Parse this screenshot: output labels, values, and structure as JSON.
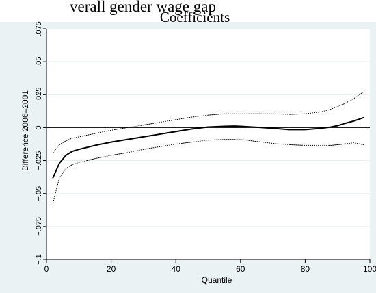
{
  "page": {
    "heading": "verall gender wage gap",
    "subheading": "Coefficients"
  },
  "chart_data": {
    "type": "line",
    "title": "verall gender wage gap",
    "subtitle": "Coefficients",
    "xlabel": "Quantile",
    "ylabel": "Difference 2006–2001",
    "xlim": [
      0,
      100
    ],
    "ylim": [
      -0.1,
      0.075
    ],
    "x_ticks": [
      0,
      20,
      40,
      60,
      80,
      100
    ],
    "x_tick_labels": [
      "0",
      "20",
      "40",
      "60",
      "80",
      "100"
    ],
    "y_ticks": [
      -0.1,
      -0.075,
      -0.05,
      -0.025,
      0,
      0.025,
      0.05,
      0.075
    ],
    "y_tick_labels": [
      "−.1",
      "−.075",
      "−.05",
      "−.025",
      "0",
      ".025",
      ".05",
      ".075"
    ],
    "grid": true,
    "legend": "none",
    "colors": {
      "outer_background": "#eaf2f3",
      "plot_background": "#ffffff",
      "grid": "#e6eef0",
      "line": "#000000"
    },
    "reference_line": {
      "y": 0
    },
    "series": [
      {
        "style": "solid",
        "x": [
          2,
          4,
          6,
          8,
          10,
          15,
          20,
          25,
          30,
          35,
          40,
          45,
          50,
          55,
          58,
          60,
          65,
          70,
          75,
          80,
          85,
          88,
          90,
          92,
          95,
          98
        ],
        "y": [
          -0.038,
          -0.027,
          -0.021,
          -0.018,
          -0.0165,
          -0.0135,
          -0.011,
          -0.009,
          -0.007,
          -0.005,
          -0.003,
          -0.001,
          0.0005,
          0.001,
          0.0012,
          0.001,
          0.0003,
          -0.0005,
          -0.0015,
          -0.0015,
          -0.0005,
          0.0005,
          0.0015,
          0.003,
          0.005,
          0.0075
        ]
      },
      {
        "style": "dotted",
        "x": [
          2,
          4,
          6,
          8,
          10,
          15,
          20,
          25,
          30,
          35,
          40,
          45,
          50,
          55,
          60,
          65,
          70,
          75,
          80,
          85,
          88,
          90,
          92,
          95,
          98
        ],
        "y": [
          -0.019,
          -0.013,
          -0.01,
          -0.008,
          -0.007,
          -0.0045,
          -0.002,
          0.0,
          0.002,
          0.004,
          0.006,
          0.008,
          0.0095,
          0.0105,
          0.0105,
          0.0105,
          0.0105,
          0.01,
          0.0105,
          0.012,
          0.014,
          0.016,
          0.018,
          0.022,
          0.027
        ]
      },
      {
        "style": "dotted",
        "x": [
          2,
          4,
          6,
          8,
          10,
          15,
          20,
          25,
          30,
          35,
          40,
          45,
          50,
          55,
          60,
          65,
          70,
          75,
          80,
          85,
          88,
          90,
          92,
          95,
          98
        ],
        "y": [
          -0.057,
          -0.038,
          -0.031,
          -0.028,
          -0.0265,
          -0.0235,
          -0.021,
          -0.019,
          -0.0165,
          -0.0145,
          -0.0125,
          -0.011,
          -0.0095,
          -0.009,
          -0.009,
          -0.0105,
          -0.012,
          -0.013,
          -0.0135,
          -0.0135,
          -0.0135,
          -0.013,
          -0.0125,
          -0.0115,
          -0.013
        ]
      }
    ]
  }
}
